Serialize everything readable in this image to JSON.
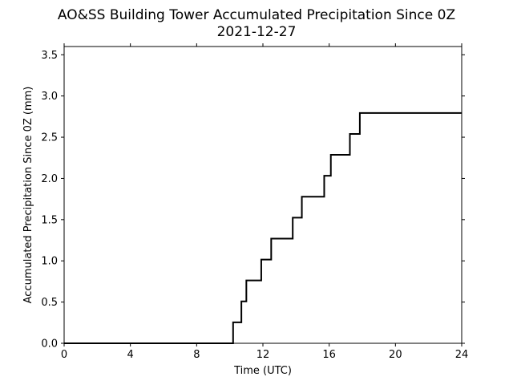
{
  "chart_data": {
    "type": "line",
    "title": "AO&SS Building Tower Accumulated Precipitation Since 0Z",
    "subtitle": "2021-12-27",
    "xlabel": "Time (UTC)",
    "ylabel": "Accumulated Precipitation Since 0Z (mm)",
    "xlim": [
      0,
      24
    ],
    "ylim": [
      0,
      3.6
    ],
    "xticks": [
      0,
      4,
      8,
      12,
      16,
      20,
      24
    ],
    "xtick_labels": [
      "0",
      "4",
      "8",
      "12",
      "16",
      "20",
      "24"
    ],
    "yticks": [
      0,
      0.5,
      1.0,
      1.5,
      2.0,
      2.5,
      3.0,
      3.5
    ],
    "ytick_labels": [
      "0.0",
      "0.5",
      "1.0",
      "1.5",
      "2.0",
      "2.5",
      "3.0",
      "3.5"
    ],
    "grid": false,
    "line_color": "#000000",
    "series": [
      {
        "step": "post",
        "x": [
          0,
          10.2,
          10.7,
          11.0,
          11.9,
          12.5,
          13.8,
          14.35,
          15.7,
          16.1,
          17.25,
          17.85,
          24
        ],
        "y": [
          0,
          0.254,
          0.508,
          0.762,
          1.016,
          1.27,
          1.524,
          1.778,
          2.032,
          2.286,
          2.54,
          2.794,
          2.794
        ]
      }
    ]
  }
}
